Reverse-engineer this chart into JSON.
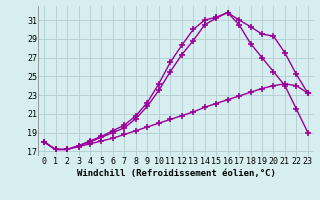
{
  "background_color": "#d6eef0",
  "grid_color": "#b0cdd0",
  "line_color": "#990099",
  "marker": "+",
  "markersize": 4,
  "linewidth": 1.0,
  "xlabel": "Windchill (Refroidissement éolien,°C)",
  "xlabel_fontsize": 6.5,
  "tick_fontsize": 6,
  "xlim": [
    -0.5,
    23.5
  ],
  "ylim": [
    16.5,
    32.5
  ],
  "yticks": [
    17,
    19,
    21,
    23,
    25,
    27,
    29,
    31
  ],
  "xticks": [
    0,
    1,
    2,
    3,
    4,
    5,
    6,
    7,
    8,
    9,
    10,
    11,
    12,
    13,
    14,
    15,
    16,
    17,
    18,
    19,
    20,
    21,
    22,
    23
  ],
  "series1_x": [
    0,
    1,
    2,
    3,
    4,
    5,
    6,
    7,
    8,
    9,
    10,
    11,
    12,
    13,
    14,
    15,
    16,
    17,
    18,
    19,
    20,
    21,
    22,
    23
  ],
  "series1_y": [
    18.0,
    17.2,
    17.2,
    17.5,
    17.8,
    18.1,
    18.4,
    18.8,
    19.2,
    19.6,
    20.0,
    20.4,
    20.8,
    21.2,
    21.7,
    22.1,
    22.5,
    22.9,
    23.3,
    23.7,
    24.0,
    24.2,
    24.0,
    23.2
  ],
  "series2_x": [
    0,
    1,
    2,
    3,
    4,
    5,
    6,
    7,
    8,
    9,
    10,
    11,
    12,
    13,
    14,
    15,
    16,
    17,
    18,
    19,
    20,
    21,
    22,
    23
  ],
  "series2_y": [
    18.0,
    17.2,
    17.2,
    17.6,
    18.1,
    18.6,
    19.2,
    19.8,
    20.8,
    22.2,
    24.2,
    26.5,
    28.3,
    30.0,
    31.0,
    31.3,
    31.8,
    31.0,
    30.3,
    29.5,
    29.3,
    27.5,
    25.2,
    23.2
  ],
  "series3_x": [
    0,
    1,
    2,
    3,
    4,
    5,
    6,
    7,
    8,
    9,
    10,
    11,
    12,
    13,
    14,
    15,
    16,
    17,
    18,
    19,
    20,
    21,
    22,
    23
  ],
  "series3_y": [
    18.0,
    17.2,
    17.2,
    17.6,
    18.0,
    18.5,
    19.0,
    19.5,
    20.5,
    21.8,
    23.5,
    25.5,
    27.3,
    28.8,
    30.5,
    31.2,
    31.8,
    30.5,
    28.5,
    27.0,
    25.5,
    24.0,
    21.5,
    19.0
  ]
}
